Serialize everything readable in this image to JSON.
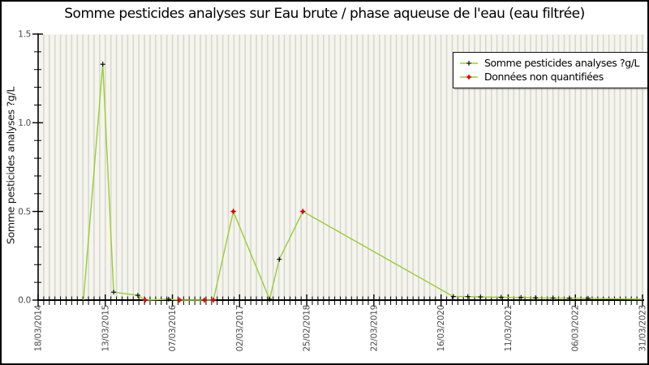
{
  "chart_data": {
    "type": "line",
    "title": "Somme pesticides analyses sur Eau brute / phase aqueuse de l'eau (eau filtrée)",
    "ylabel": "Somme pesticides analyses ?g/L",
    "xlabel": "",
    "ylim": [
      0,
      1.5
    ],
    "yticks": [
      0.0,
      0.5,
      1.0,
      1.5
    ],
    "ytick_labels": [
      "0.0",
      "0.5",
      "1.0",
      "1.5"
    ],
    "y_minor_step": 0.1,
    "xtick_labels": [
      "18/03/2014",
      "13/03/2015",
      "07/03/2016",
      "02/03/2017",
      "25/02/2018",
      "22/03/2019",
      "16/03/2020",
      "11/03/2021",
      "06/03/2022",
      "31/03/2023"
    ],
    "x_minor_intervals_per_major": 12,
    "grid": "vertical-stripes-at-every-sample",
    "legend": {
      "position": "top-right",
      "entries": [
        {
          "label": "Somme pesticides analyses ?g/L",
          "marker": "black-plus",
          "line_color": "#9acd32"
        },
        {
          "label": "Données non quantifiées",
          "marker": "red-star",
          "line_color": "#9acd32"
        }
      ]
    },
    "series": [
      {
        "name": "Somme pesticides analyses ?g/L",
        "unit": "?g/L",
        "note": "t is the fractional position along the x axis between 18/03/2014 (0) and 31/03/2023 (1); m marks the symbol drawn at the vertex",
        "points": [
          {
            "t": 0.075,
            "v": 0.0,
            "m": null
          },
          {
            "t": 0.107,
            "v": 1.33,
            "m": "quantified"
          },
          {
            "t": 0.125,
            "v": 0.045,
            "m": "quantified"
          },
          {
            "t": 0.165,
            "v": 0.027,
            "m": "quantified"
          },
          {
            "t": 0.177,
            "v": 0.0,
            "m": "nonquantified"
          },
          {
            "t": 0.216,
            "v": 0.005,
            "m": "quantified"
          },
          {
            "t": 0.234,
            "v": 0.0,
            "m": "nonquantified"
          },
          {
            "t": 0.275,
            "v": 0.0,
            "m": "nonquantified"
          },
          {
            "t": 0.29,
            "v": 0.0,
            "m": "nonquantified"
          },
          {
            "t": 0.323,
            "v": 0.5,
            "m": "nonquantified"
          },
          {
            "t": 0.383,
            "v": 0.005,
            "m": "quantified"
          },
          {
            "t": 0.399,
            "v": 0.23,
            "m": "quantified"
          },
          {
            "t": 0.438,
            "v": 0.5,
            "m": "nonquantified"
          },
          {
            "t": 0.687,
            "v": 0.02,
            "m": "quantified"
          },
          {
            "t": 0.711,
            "v": 0.02,
            "m": "quantified"
          },
          {
            "t": 0.732,
            "v": 0.018,
            "m": "quantified"
          },
          {
            "t": 0.766,
            "v": 0.016,
            "m": "quantified"
          },
          {
            "t": 0.799,
            "v": 0.015,
            "m": "quantified"
          },
          {
            "t": 0.823,
            "v": 0.013,
            "m": "quantified"
          },
          {
            "t": 0.852,
            "v": 0.012,
            "m": "quantified"
          },
          {
            "t": 0.879,
            "v": 0.011,
            "m": "quantified"
          },
          {
            "t": 0.91,
            "v": 0.01,
            "m": "quantified"
          },
          {
            "t": 1.0,
            "v": 0.005,
            "m": null
          }
        ]
      }
    ],
    "colors": {
      "line": "#9acd32",
      "quantified_marker": "#000000",
      "non_quantified_marker": "#dd0000",
      "plot_background": "#f5f5ee",
      "stripe": "#d7d7d1",
      "axis": "#000000",
      "tick_label": "#4a4a4a"
    }
  }
}
